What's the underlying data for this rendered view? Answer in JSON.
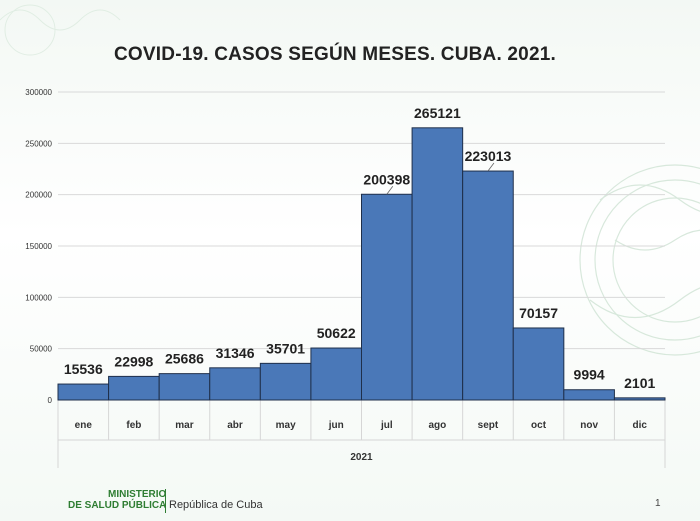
{
  "slide": {
    "title": "COVID-19. CASOS SEGÚN MESES. CUBA. 2021.",
    "ministry_line1": "MINISTERIO",
    "ministry_line2": "DE SALUD PÚBLICA",
    "country": "República de Cuba",
    "page_number": "1"
  },
  "colors": {
    "bar_fill": "#4a78b8",
    "bar_stroke": "#1f2f4a",
    "brand_green": "#2e7d32"
  },
  "chart_data": {
    "type": "bar",
    "title": "COVID-19. CASOS SEGÚN MESES. CUBA. 2021.",
    "categories": [
      "ene",
      "feb",
      "mar",
      "abr",
      "may",
      "jun",
      "jul",
      "ago",
      "sept",
      "oct",
      "nov",
      "dic"
    ],
    "group_label": "2021",
    "values": [
      15536,
      22998,
      25686,
      31346,
      35701,
      50622,
      200398,
      265121,
      223013,
      70157,
      9994,
      2101
    ],
    "data_labels": [
      "15536",
      "22998",
      "25686",
      "31346",
      "35701",
      "50622",
      "200398",
      "265121",
      "223013",
      "70157",
      "9994",
      "2101"
    ],
    "y_ticks": [
      "0",
      "50000",
      "100000",
      "150000",
      "200000",
      "250000",
      "300000"
    ],
    "ylim": [
      0,
      300000
    ],
    "grid": true,
    "legend": false,
    "xlabel": "",
    "ylabel": ""
  }
}
